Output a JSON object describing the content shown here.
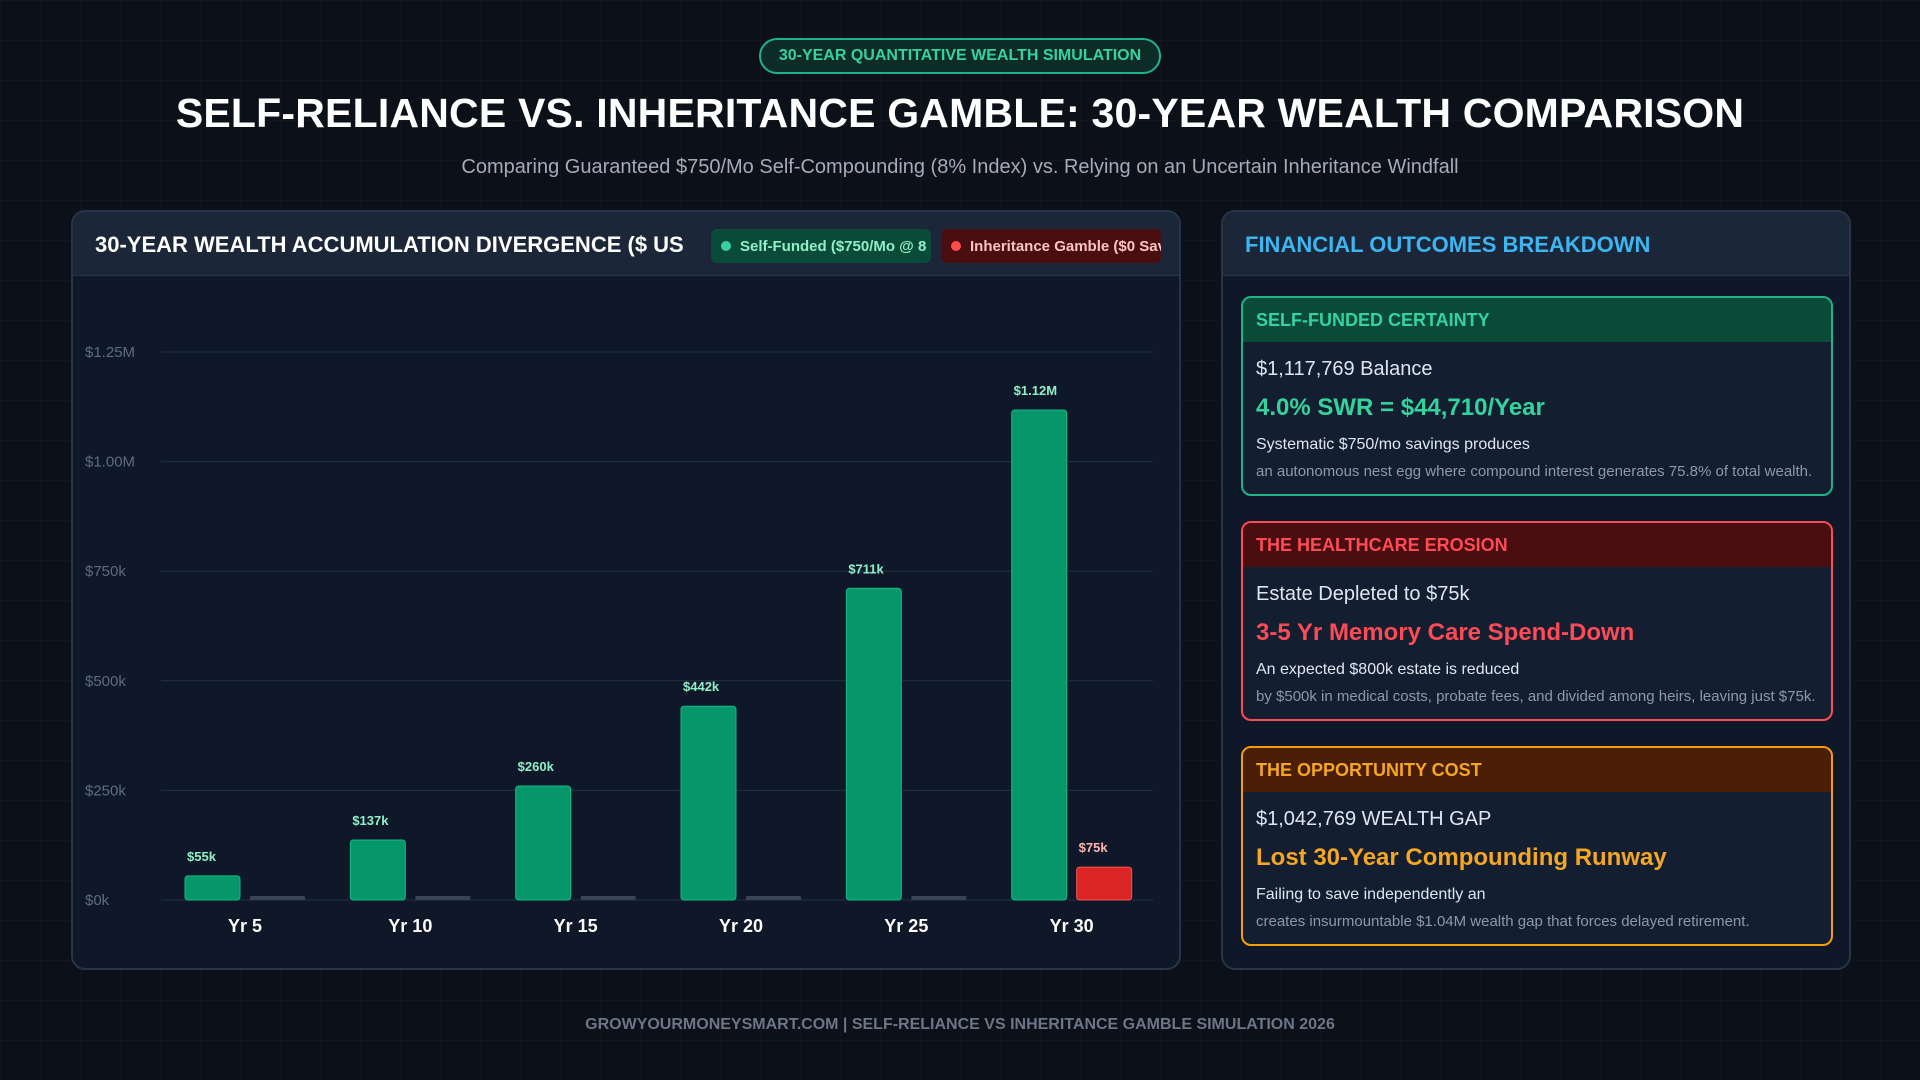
{
  "header": {
    "badge": "30-YEAR QUANTITATIVE WEALTH SIMULATION",
    "title": "SELF-RELIANCE VS. INHERITANCE GAMBLE: 30-YEAR WEALTH COMPARISON",
    "subtitle": "Comparing Guaranteed $750/Mo Self-Compounding (8% Index) vs. Relying on an Uncertain Inheritance Windfall"
  },
  "chart_panel": {
    "title": "30-YEAR WEALTH ACCUMULATION DIVERGENCE ($ US",
    "legend": {
      "self_funded": "Self-Funded ($750/Mo @ 8",
      "inheritance": "Inheritance Gamble ($0 Sav)"
    }
  },
  "chart_data": {
    "type": "bar",
    "categories": [
      "Yr 5",
      "Yr 10",
      "Yr 15",
      "Yr 20",
      "Yr 25",
      "Yr 30"
    ],
    "series": [
      {
        "name": "Self-Funded ($750/Mo @ 8",
        "values": [
          55000,
          137000,
          260000,
          442000,
          711000,
          1117769
        ],
        "labels": [
          "$55k",
          "$137k",
          "$260k",
          "$442k",
          "$711k",
          "$1.12M"
        ],
        "color": "#059669"
      },
      {
        "name": "Inheritance Gamble ($0 Sav)",
        "values": [
          0,
          0,
          0,
          0,
          0,
          75000
        ],
        "labels": [
          "",
          "",
          "",
          "",
          "",
          "$75k"
        ],
        "color": "#dc2626"
      }
    ],
    "yticks": [
      0,
      250000,
      500000,
      750000,
      1000000,
      1250000
    ],
    "ytick_labels": [
      "$0k",
      "$250k",
      "$500k",
      "$750k",
      "$1.00M",
      "$1.25M"
    ],
    "ylim": [
      0,
      1250000
    ],
    "grid": true,
    "legend_position": "top-right"
  },
  "breakdown": {
    "title": "FINANCIAL OUTCOMES BREAKDOWN",
    "cards": [
      {
        "heading": "SELF-FUNDED CERTAINTY",
        "line1": "$1,117,769 Balance",
        "line2": "4.0% SWR = $44,710/Year",
        "line3": "Systematic $750/mo savings produces",
        "line4": "an autonomous nest egg where compound interest generates 75.8% of total wealth."
      },
      {
        "heading": "THE HEALTHCARE EROSION",
        "line1": "Estate Depleted to $75k",
        "line2": "3-5 Yr Memory Care Spend-Down",
        "line3": "An expected $800k estate is reduced",
        "line4": "by $500k in medical costs, probate fees, and divided among heirs, leaving just $75k."
      },
      {
        "heading": "THE OPPORTUNITY COST",
        "line1": "$1,042,769 WEALTH GAP",
        "line2": "Lost 30-Year Compounding Runway",
        "line3": "Failing to save independently an",
        "line4": "creates insurmountable $1.04M wealth gap that forces delayed retirement."
      }
    ]
  },
  "footer": "GROWYOURMONEYSMART.COM  |  SELF-RELIANCE VS INHERITANCE GAMBLE SIMULATION 2026"
}
